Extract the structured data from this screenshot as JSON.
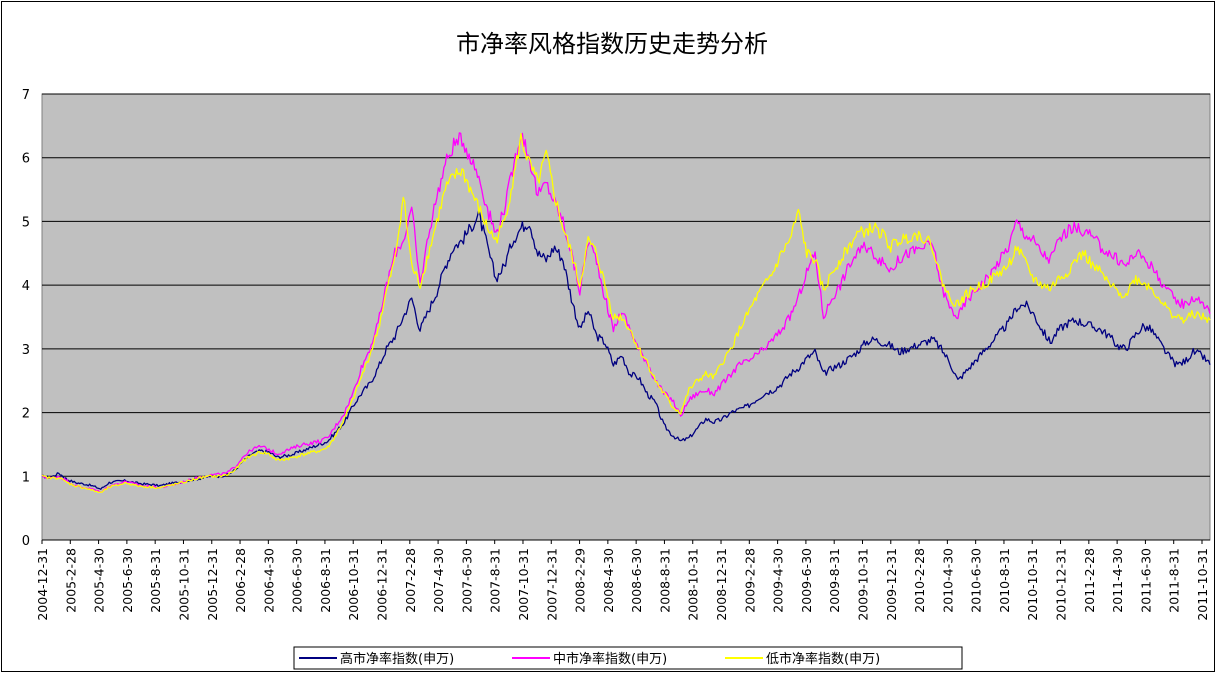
{
  "chart_data": {
    "type": "line",
    "title": "市净率风格指数历史走势分析",
    "ylim": [
      0,
      7
    ],
    "yticks": [
      0,
      1,
      2,
      3,
      4,
      5,
      6,
      7
    ],
    "grid": true,
    "legend_position": "bottom",
    "x_ticks": [
      "2004-12-31",
      "2005-2-28",
      "2005-4-30",
      "2005-6-30",
      "2005-8-31",
      "2005-10-31",
      "2005-12-31",
      "2006-2-28",
      "2006-4-30",
      "2006-6-30",
      "2006-8-31",
      "2006-10-31",
      "2006-12-31",
      "2007-2-28",
      "2007-4-30",
      "2007-6-30",
      "2007-8-31",
      "2007-10-31",
      "2007-12-31",
      "2008-2-29",
      "2008-4-30",
      "2008-6-30",
      "2008-8-31",
      "2008-10-31",
      "2008-12-31",
      "2009-2-28",
      "2009-4-30",
      "2009-6-30",
      "2009-8-31",
      "2009-10-31",
      "2009-12-31",
      "2010-2-28",
      "2010-4-30",
      "2010-6-30",
      "2010-8-31",
      "2010-10-31",
      "2010-12-31",
      "2011-2-28",
      "2011-4-30",
      "2011-6-30",
      "2011-8-31",
      "2011-10-31"
    ],
    "series": [
      {
        "name": "高市净率指数(申万)",
        "color": "#000080",
        "values": [
          1.0,
          0.98,
          1.05,
          0.95,
          0.9,
          0.88,
          0.85,
          0.8,
          0.9,
          0.92,
          0.93,
          0.9,
          0.88,
          0.87,
          0.85,
          0.88,
          0.9,
          0.92,
          0.95,
          0.97,
          1.0,
          1.0,
          1.02,
          1.1,
          1.25,
          1.35,
          1.4,
          1.38,
          1.3,
          1.32,
          1.35,
          1.4,
          1.45,
          1.5,
          1.55,
          1.7,
          1.85,
          2.1,
          2.3,
          2.45,
          2.7,
          3.0,
          3.2,
          3.5,
          3.8,
          3.3,
          3.6,
          3.9,
          4.3,
          4.6,
          4.7,
          4.9,
          5.1,
          4.6,
          4.1,
          4.3,
          4.7,
          4.9,
          5.0,
          4.5,
          4.4,
          4.6,
          4.4,
          3.8,
          3.3,
          3.6,
          3.2,
          3.1,
          2.75,
          2.9,
          2.6,
          2.55,
          2.3,
          2.15,
          1.8,
          1.65,
          1.55,
          1.6,
          1.75,
          1.9,
          1.85,
          1.9,
          2.0,
          2.05,
          2.1,
          2.2,
          2.3,
          2.35,
          2.45,
          2.6,
          2.7,
          2.85,
          2.95,
          2.6,
          2.7,
          2.75,
          2.85,
          2.95,
          3.1,
          3.15,
          3.1,
          3.05,
          2.95,
          3.0,
          3.05,
          3.1,
          3.15,
          3.0,
          2.8,
          2.5,
          2.65,
          2.8,
          2.95,
          3.1,
          3.25,
          3.4,
          3.65,
          3.7,
          3.55,
          3.3,
          3.1,
          3.3,
          3.4,
          3.45,
          3.4,
          3.35,
          3.3,
          3.2,
          3.05,
          3.0,
          3.2,
          3.35,
          3.3,
          3.1,
          2.9,
          2.75,
          2.8,
          2.95,
          2.9,
          2.75
        ]
      },
      {
        "name": "中市净率指数(申万)",
        "color": "#ff00ff",
        "values": [
          1.0,
          0.97,
          1.0,
          0.93,
          0.85,
          0.82,
          0.8,
          0.75,
          0.85,
          0.88,
          0.92,
          0.88,
          0.85,
          0.84,
          0.82,
          0.85,
          0.88,
          0.92,
          0.96,
          1.0,
          1.02,
          1.03,
          1.05,
          1.15,
          1.32,
          1.42,
          1.47,
          1.42,
          1.35,
          1.4,
          1.45,
          1.5,
          1.52,
          1.55,
          1.6,
          1.8,
          2.0,
          2.3,
          2.7,
          3.0,
          3.4,
          4.0,
          4.5,
          4.7,
          5.2,
          4.0,
          4.8,
          5.4,
          5.9,
          6.2,
          6.3,
          6.0,
          5.7,
          5.2,
          4.8,
          5.2,
          5.8,
          6.4,
          6.0,
          5.4,
          5.6,
          5.3,
          5.0,
          4.5,
          3.9,
          4.7,
          4.4,
          3.8,
          3.3,
          3.6,
          3.3,
          3.0,
          2.8,
          2.5,
          2.3,
          2.2,
          1.95,
          2.2,
          2.3,
          2.35,
          2.3,
          2.45,
          2.6,
          2.75,
          2.8,
          2.9,
          3.0,
          3.15,
          3.3,
          3.5,
          3.8,
          4.2,
          4.5,
          3.5,
          3.8,
          4.0,
          4.3,
          4.5,
          4.6,
          4.5,
          4.35,
          4.25,
          4.4,
          4.5,
          4.55,
          4.6,
          4.65,
          4.0,
          3.65,
          3.5,
          3.75,
          3.9,
          4.05,
          4.2,
          4.4,
          4.6,
          5.0,
          4.8,
          4.7,
          4.5,
          4.4,
          4.7,
          4.85,
          4.9,
          4.85,
          4.75,
          4.6,
          4.5,
          4.4,
          4.3,
          4.5,
          4.45,
          4.3,
          4.1,
          3.9,
          3.75,
          3.7,
          3.8,
          3.75,
          3.55
        ]
      },
      {
        "name": "低市净率指数(申万)",
        "color": "#ffff00",
        "values": [
          1.0,
          0.97,
          0.98,
          0.9,
          0.85,
          0.82,
          0.78,
          0.74,
          0.83,
          0.86,
          0.9,
          0.86,
          0.84,
          0.83,
          0.82,
          0.85,
          0.88,
          0.91,
          0.95,
          0.98,
          1.0,
          1.0,
          1.02,
          1.1,
          1.25,
          1.33,
          1.38,
          1.35,
          1.25,
          1.27,
          1.3,
          1.34,
          1.37,
          1.4,
          1.45,
          1.65,
          1.9,
          2.2,
          2.55,
          2.9,
          3.3,
          3.9,
          4.4,
          5.4,
          4.3,
          4.0,
          4.5,
          5.0,
          5.5,
          5.7,
          5.8,
          5.5,
          5.2,
          4.9,
          4.7,
          5.0,
          5.6,
          6.3,
          5.9,
          5.6,
          6.05,
          5.4,
          4.9,
          4.5,
          4.0,
          4.7,
          4.5,
          4.0,
          3.5,
          3.5,
          3.3,
          3.0,
          2.8,
          2.5,
          2.3,
          2.1,
          2.0,
          2.35,
          2.5,
          2.6,
          2.55,
          2.8,
          3.0,
          3.3,
          3.55,
          3.8,
          4.0,
          4.2,
          4.5,
          4.7,
          5.15,
          4.5,
          4.4,
          3.9,
          4.2,
          4.4,
          4.6,
          4.8,
          4.85,
          4.9,
          4.8,
          4.6,
          4.7,
          4.75,
          4.8,
          4.75,
          4.6,
          4.1,
          3.8,
          3.7,
          3.85,
          3.95,
          4.0,
          4.1,
          4.2,
          4.3,
          4.6,
          4.35,
          4.1,
          4.0,
          3.95,
          4.1,
          4.2,
          4.4,
          4.5,
          4.3,
          4.2,
          4.0,
          3.9,
          3.85,
          4.1,
          4.05,
          3.95,
          3.8,
          3.6,
          3.5,
          3.45,
          3.55,
          3.5,
          3.45
        ]
      }
    ]
  }
}
